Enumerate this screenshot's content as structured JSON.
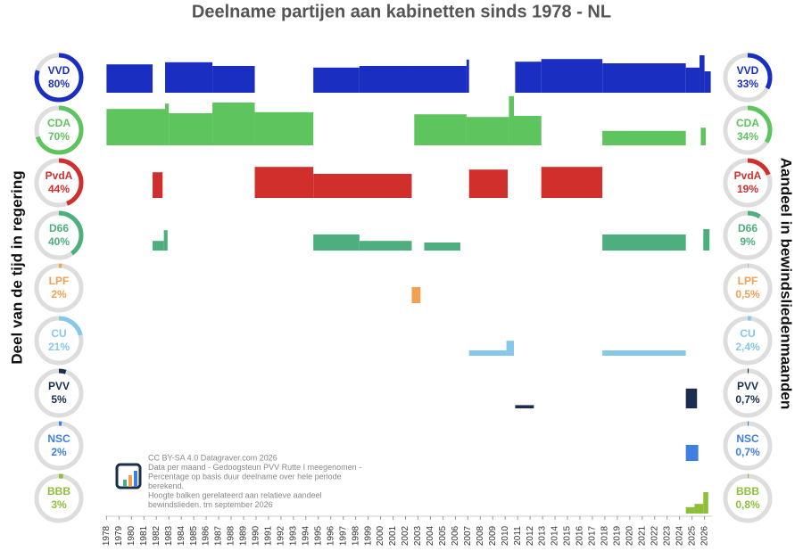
{
  "chart_data": {
    "type": "timeline",
    "title": "Deelname partijen aan kabinetten sinds 1978 - NL",
    "left_axis_label": "Deel van de tijd in regering",
    "right_axis_label": "Aandeel in bewindsliedenmaanden",
    "xlim": [
      1977.9,
      2026.6
    ],
    "xticks": [
      1978,
      1979,
      1980,
      1981,
      1982,
      1983,
      1984,
      1985,
      1986,
      1987,
      1988,
      1989,
      1990,
      1991,
      1992,
      1993,
      1994,
      1995,
      1996,
      1997,
      1998,
      1999,
      2000,
      2001,
      2002,
      2003,
      2004,
      2005,
      2006,
      2007,
      2008,
      2009,
      2010,
      2011,
      2012,
      2013,
      2014,
      2015,
      2016,
      2017,
      2018,
      2019,
      2020,
      2021,
      2022,
      2023,
      2024,
      2025,
      2026
    ],
    "ylim": [
      0,
      100
    ],
    "series": [
      {
        "name": "VVD",
        "color": "#1a2fc2",
        "time_share": {
          "value": 80,
          "label": "80%"
        },
        "seat_share": {
          "value": 33,
          "label": "33%"
        },
        "segments": [
          {
            "start": 1978,
            "end": 1981.7,
            "value": 53
          },
          {
            "start": 1982.7,
            "end": 1986.5,
            "value": 57
          },
          {
            "start": 1986.5,
            "end": 1989.9,
            "value": 50
          },
          {
            "start": 1994.6,
            "end": 1998.3,
            "value": 47
          },
          {
            "start": 1998.3,
            "end": 2002.5,
            "value": 50
          },
          {
            "start": 2002.5,
            "end": 2006.9,
            "value": 50
          },
          {
            "start": 2006.9,
            "end": 2007.1,
            "value": 62
          },
          {
            "start": 2010.8,
            "end": 2012.9,
            "value": 58
          },
          {
            "start": 2012.9,
            "end": 2017.8,
            "value": 63
          },
          {
            "start": 2017.8,
            "end": 2024.5,
            "value": 55
          },
          {
            "start": 2024.5,
            "end": 2025.6,
            "value": 47
          },
          {
            "start": 2025.6,
            "end": 2026,
            "value": 70
          },
          {
            "start": 2026,
            "end": 2026.5,
            "value": 40
          }
        ]
      },
      {
        "name": "CDA",
        "color": "#5ec45e",
        "time_share": {
          "value": 70,
          "label": "70%"
        },
        "seat_share": {
          "value": 34,
          "label": "34%"
        },
        "segments": [
          {
            "start": 1978,
            "end": 1982.7,
            "value": 68
          },
          {
            "start": 1982.7,
            "end": 1983,
            "value": 78
          },
          {
            "start": 1983,
            "end": 1986.5,
            "value": 60
          },
          {
            "start": 1986.5,
            "end": 1989.9,
            "value": 80
          },
          {
            "start": 1989.9,
            "end": 1994.6,
            "value": 62
          },
          {
            "start": 2002.7,
            "end": 2006.9,
            "value": 58
          },
          {
            "start": 2006.9,
            "end": 2010.3,
            "value": 53
          },
          {
            "start": 2010.3,
            "end": 2010.7,
            "value": 92
          },
          {
            "start": 2010.7,
            "end": 2012.9,
            "value": 55
          },
          {
            "start": 2017.8,
            "end": 2024.5,
            "value": 27
          },
          {
            "start": 2025.7,
            "end": 2026.1,
            "value": 33
          }
        ]
      },
      {
        "name": "PvdA",
        "color": "#d12f2b",
        "time_share": {
          "value": 44,
          "label": "44%"
        },
        "seat_share": {
          "value": 19,
          "label": "19%"
        },
        "segments": [
          {
            "start": 1981.7,
            "end": 1982.5,
            "value": 48
          },
          {
            "start": 1989.9,
            "end": 1994.6,
            "value": 58
          },
          {
            "start": 1994.6,
            "end": 2002.5,
            "value": 45
          },
          {
            "start": 2007.1,
            "end": 2010.2,
            "value": 53
          },
          {
            "start": 2012.9,
            "end": 2017.8,
            "value": 58
          }
        ]
      },
      {
        "name": "D66",
        "color": "#4caf7d",
        "time_share": {
          "value": 40,
          "label": "40%"
        },
        "seat_share": {
          "value": 9,
          "label": "9%"
        },
        "segments": [
          {
            "start": 1981.7,
            "end": 1982.6,
            "value": 18
          },
          {
            "start": 1982.6,
            "end": 1982.9,
            "value": 38
          },
          {
            "start": 1994.6,
            "end": 1998.3,
            "value": 30
          },
          {
            "start": 1998.3,
            "end": 2002.5,
            "value": 18
          },
          {
            "start": 2003.5,
            "end": 2006.4,
            "value": 15
          },
          {
            "start": 2017.8,
            "end": 2024.5,
            "value": 30
          },
          {
            "start": 2025.9,
            "end": 2026.4,
            "value": 40
          }
        ]
      },
      {
        "name": "LPF",
        "color": "#f0a050",
        "time_share": {
          "value": 2,
          "label": "2%"
        },
        "seat_share": {
          "value": 0.5,
          "label": "0,5%"
        },
        "segments": [
          {
            "start": 2002.5,
            "end": 2003.2,
            "value": 30
          }
        ]
      },
      {
        "name": "CU",
        "color": "#85c8ea",
        "time_share": {
          "value": 21,
          "label": "21%"
        },
        "seat_share": {
          "value": 2.4,
          "label": "2,4%"
        },
        "segments": [
          {
            "start": 2007.1,
            "end": 2010.1,
            "value": 10
          },
          {
            "start": 2010.1,
            "end": 2010.7,
            "value": 28
          },
          {
            "start": 2017.8,
            "end": 2024.5,
            "value": 10
          }
        ]
      },
      {
        "name": "PVV",
        "color": "#1a2e4f",
        "time_share": {
          "value": 5,
          "label": "5%"
        },
        "seat_share": {
          "value": 0.7,
          "label": "0,7%"
        },
        "segments": [
          {
            "start": 2010.8,
            "end": 2012.3,
            "value": 6
          },
          {
            "start": 2024.5,
            "end": 2025.4,
            "value": 37
          }
        ]
      },
      {
        "name": "NSC",
        "color": "#3e7fe0",
        "time_share": {
          "value": 2,
          "label": "2%"
        },
        "seat_share": {
          "value": 0.7,
          "label": "0,7%"
        },
        "segments": [
          {
            "start": 2024.5,
            "end": 2025.5,
            "value": 30
          }
        ]
      },
      {
        "name": "BBB",
        "color": "#8fbf3a",
        "time_share": {
          "value": 3,
          "label": "3%"
        },
        "seat_share": {
          "value": 0.8,
          "label": "0,8%"
        },
        "segments": [
          {
            "start": 2024.5,
            "end": 2025.2,
            "value": 12
          },
          {
            "start": 2025.2,
            "end": 2025.9,
            "value": 18
          },
          {
            "start": 2025.9,
            "end": 2026.3,
            "value": 40
          }
        ]
      }
    ],
    "credits": [
      "CC BY-SA 4.0 Datagraver.com 2026",
      "Data per maand - Gedoogsteun PVV Rutte I meegenomen -",
      "Percentage op basis duur deelname over hele periode",
      "berekend.",
      "Hoogte balken gerelateerd aan relatieve aandeel",
      "bewindslieden. tm september 2026"
    ]
  }
}
